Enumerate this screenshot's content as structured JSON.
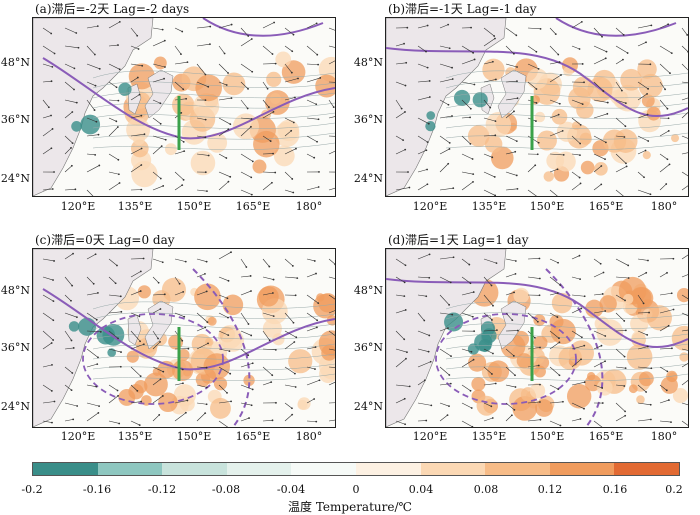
{
  "panels": [
    {
      "title": "(a)滞后=-2天 Lag=-2 days",
      "lat_labels": [
        "48°N",
        "36°N",
        "24°N"
      ],
      "lon_labels": [
        "120°E",
        "135°E",
        "150°E",
        "165°E",
        "180°"
      ]
    },
    {
      "title": "(b)滞后=-1天 Lag=-1 day",
      "lat_labels": [
        "48°N",
        "36°N",
        "24°N"
      ],
      "lon_labels": [
        "120°E",
        "135°E",
        "150°E",
        "165°E",
        "180°"
      ]
    },
    {
      "title": "(c)滞后=0天 Lag=0 day",
      "lat_labels": [
        "48°N",
        "36°N",
        "24°N"
      ],
      "lon_labels": [
        "120°E",
        "135°E",
        "150°E",
        "165°E",
        "180°"
      ]
    },
    {
      "title": "(d)滞后=1天 Lag=1 day",
      "lat_labels": [
        "48°N",
        "36°N",
        "24°N"
      ],
      "lon_labels": [
        "120°E",
        "135°E",
        "150°E",
        "165°E",
        "180°"
      ]
    }
  ],
  "colorbar": {
    "ticks": [
      "-0.2",
      "-0.16",
      "-0.12",
      "-0.08",
      "-0.04",
      "0",
      "0.04",
      "0.08",
      "0.12",
      "0.16",
      "0.2"
    ],
    "colors": [
      "#3a8e89",
      "#8ec7c0",
      "#c8e3dc",
      "#e4f1ec",
      "#f6faf7",
      "#fdf1e3",
      "#fbd8b4",
      "#f7bc88",
      "#f09c5e",
      "#e26a33"
    ],
    "title": "温度 Temperature/℃"
  },
  "colors": {
    "land": "#ece7ea",
    "ocean": "#fbfbf8",
    "contour_purple": "#8a5cb8",
    "section_line": "#3aa14a",
    "warm": "#f7bc88",
    "cool": "#3a8e89"
  }
}
